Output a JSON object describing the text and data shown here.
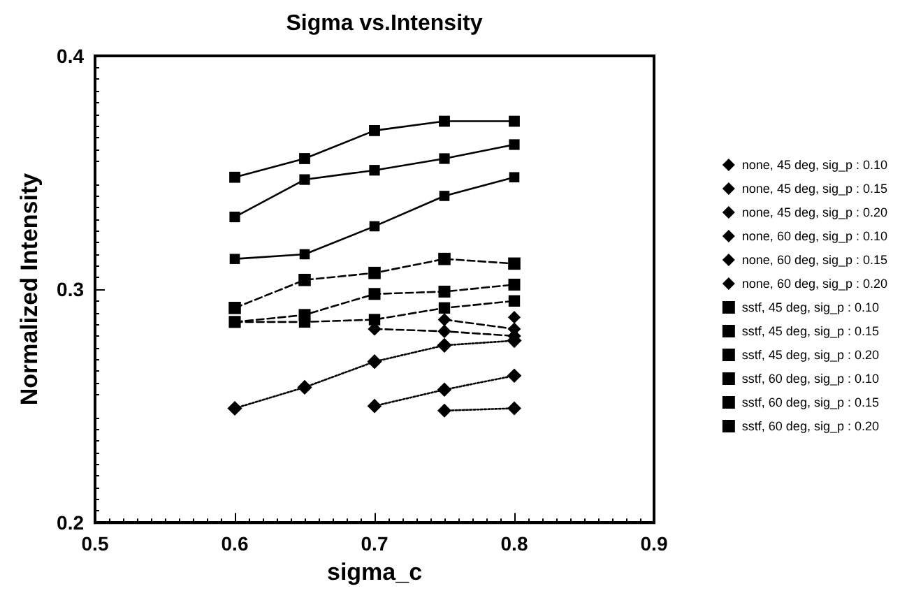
{
  "chart_data": {
    "type": "line",
    "title": "Sigma vs.Intensity",
    "xlabel": "sigma_c",
    "ylabel": "Normalized Intensity",
    "x": [
      0.6,
      0.65,
      0.7,
      0.75,
      0.8
    ],
    "xlim": [
      0.5,
      0.9
    ],
    "xticks": [
      0.5,
      0.6,
      0.7,
      0.8,
      0.9
    ],
    "ylim": [
      0.2,
      0.4
    ],
    "yticks": [
      0.2,
      0.3,
      0.4
    ],
    "grid": false,
    "legend": "right",
    "series": [
      {
        "name": "none, 45 deg, sig_p : 0.10",
        "color": "#000000",
        "marker": "diamond",
        "line_style": "dotted",
        "values": [
          0.249,
          0.258,
          0.269,
          0.276,
          0.278
        ]
      },
      {
        "name": "none, 45 deg, sig_p : 0.15",
        "color": "#000000",
        "marker": "diamond",
        "line_style": "dotted",
        "values": [
          null,
          null,
          0.25,
          0.257,
          0.263
        ]
      },
      {
        "name": "none, 45 deg, sig_p : 0.20",
        "color": "#000000",
        "marker": "diamond",
        "line_style": "dotted",
        "values": [
          null,
          null,
          null,
          0.248,
          0.249
        ]
      },
      {
        "name": "none, 60 deg, sig_p : 0.10",
        "color": "#000000",
        "marker": "diamond",
        "line_style": "dashed",
        "values": [
          null,
          null,
          0.283,
          0.282,
          0.28
        ]
      },
      {
        "name": "none, 60 deg, sig_p : 0.15",
        "color": "#000000",
        "marker": "diamond",
        "line_style": "dashed",
        "values": [
          null,
          null,
          null,
          0.287,
          0.283
        ]
      },
      {
        "name": "none, 60 deg, sig_p : 0.20",
        "color": "#000000",
        "marker": "diamond",
        "line_style": "dashed",
        "values": [
          null,
          null,
          null,
          null,
          0.288
        ]
      },
      {
        "name": "sstf, 45 deg, sig_p : 0.10",
        "color": "#000000",
        "marker": "square",
        "line_style": "dashed",
        "values": [
          0.292,
          0.304,
          0.307,
          0.313,
          0.311
        ]
      },
      {
        "name": "sstf, 45 deg, sig_p : 0.15",
        "color": "#000000",
        "marker": "square",
        "line_style": "dashed",
        "values": [
          0.286,
          0.289,
          0.298,
          0.299,
          0.302
        ]
      },
      {
        "name": "sstf, 45 deg, sig_p : 0.20",
        "color": "#000000",
        "marker": "square",
        "line_style": "dashed",
        "values": [
          0.286,
          0.286,
          0.287,
          0.292,
          0.295
        ]
      },
      {
        "name": "sstf, 60 deg, sig_p : 0.10",
        "color": "#000000",
        "marker": "square",
        "line_style": "solid",
        "values": [
          0.348,
          0.356,
          0.368,
          0.372,
          0.372
        ]
      },
      {
        "name": "sstf, 60 deg, sig_p : 0.15",
        "color": "#000000",
        "marker": "square",
        "line_style": "solid",
        "values": [
          0.331,
          0.347,
          0.351,
          0.356,
          0.362
        ]
      },
      {
        "name": "sstf, 60 deg, sig_p : 0.20",
        "color": "#000000",
        "marker": "square",
        "line_style": "solid",
        "values": [
          0.313,
          0.315,
          0.327,
          0.34,
          0.348
        ]
      }
    ]
  }
}
